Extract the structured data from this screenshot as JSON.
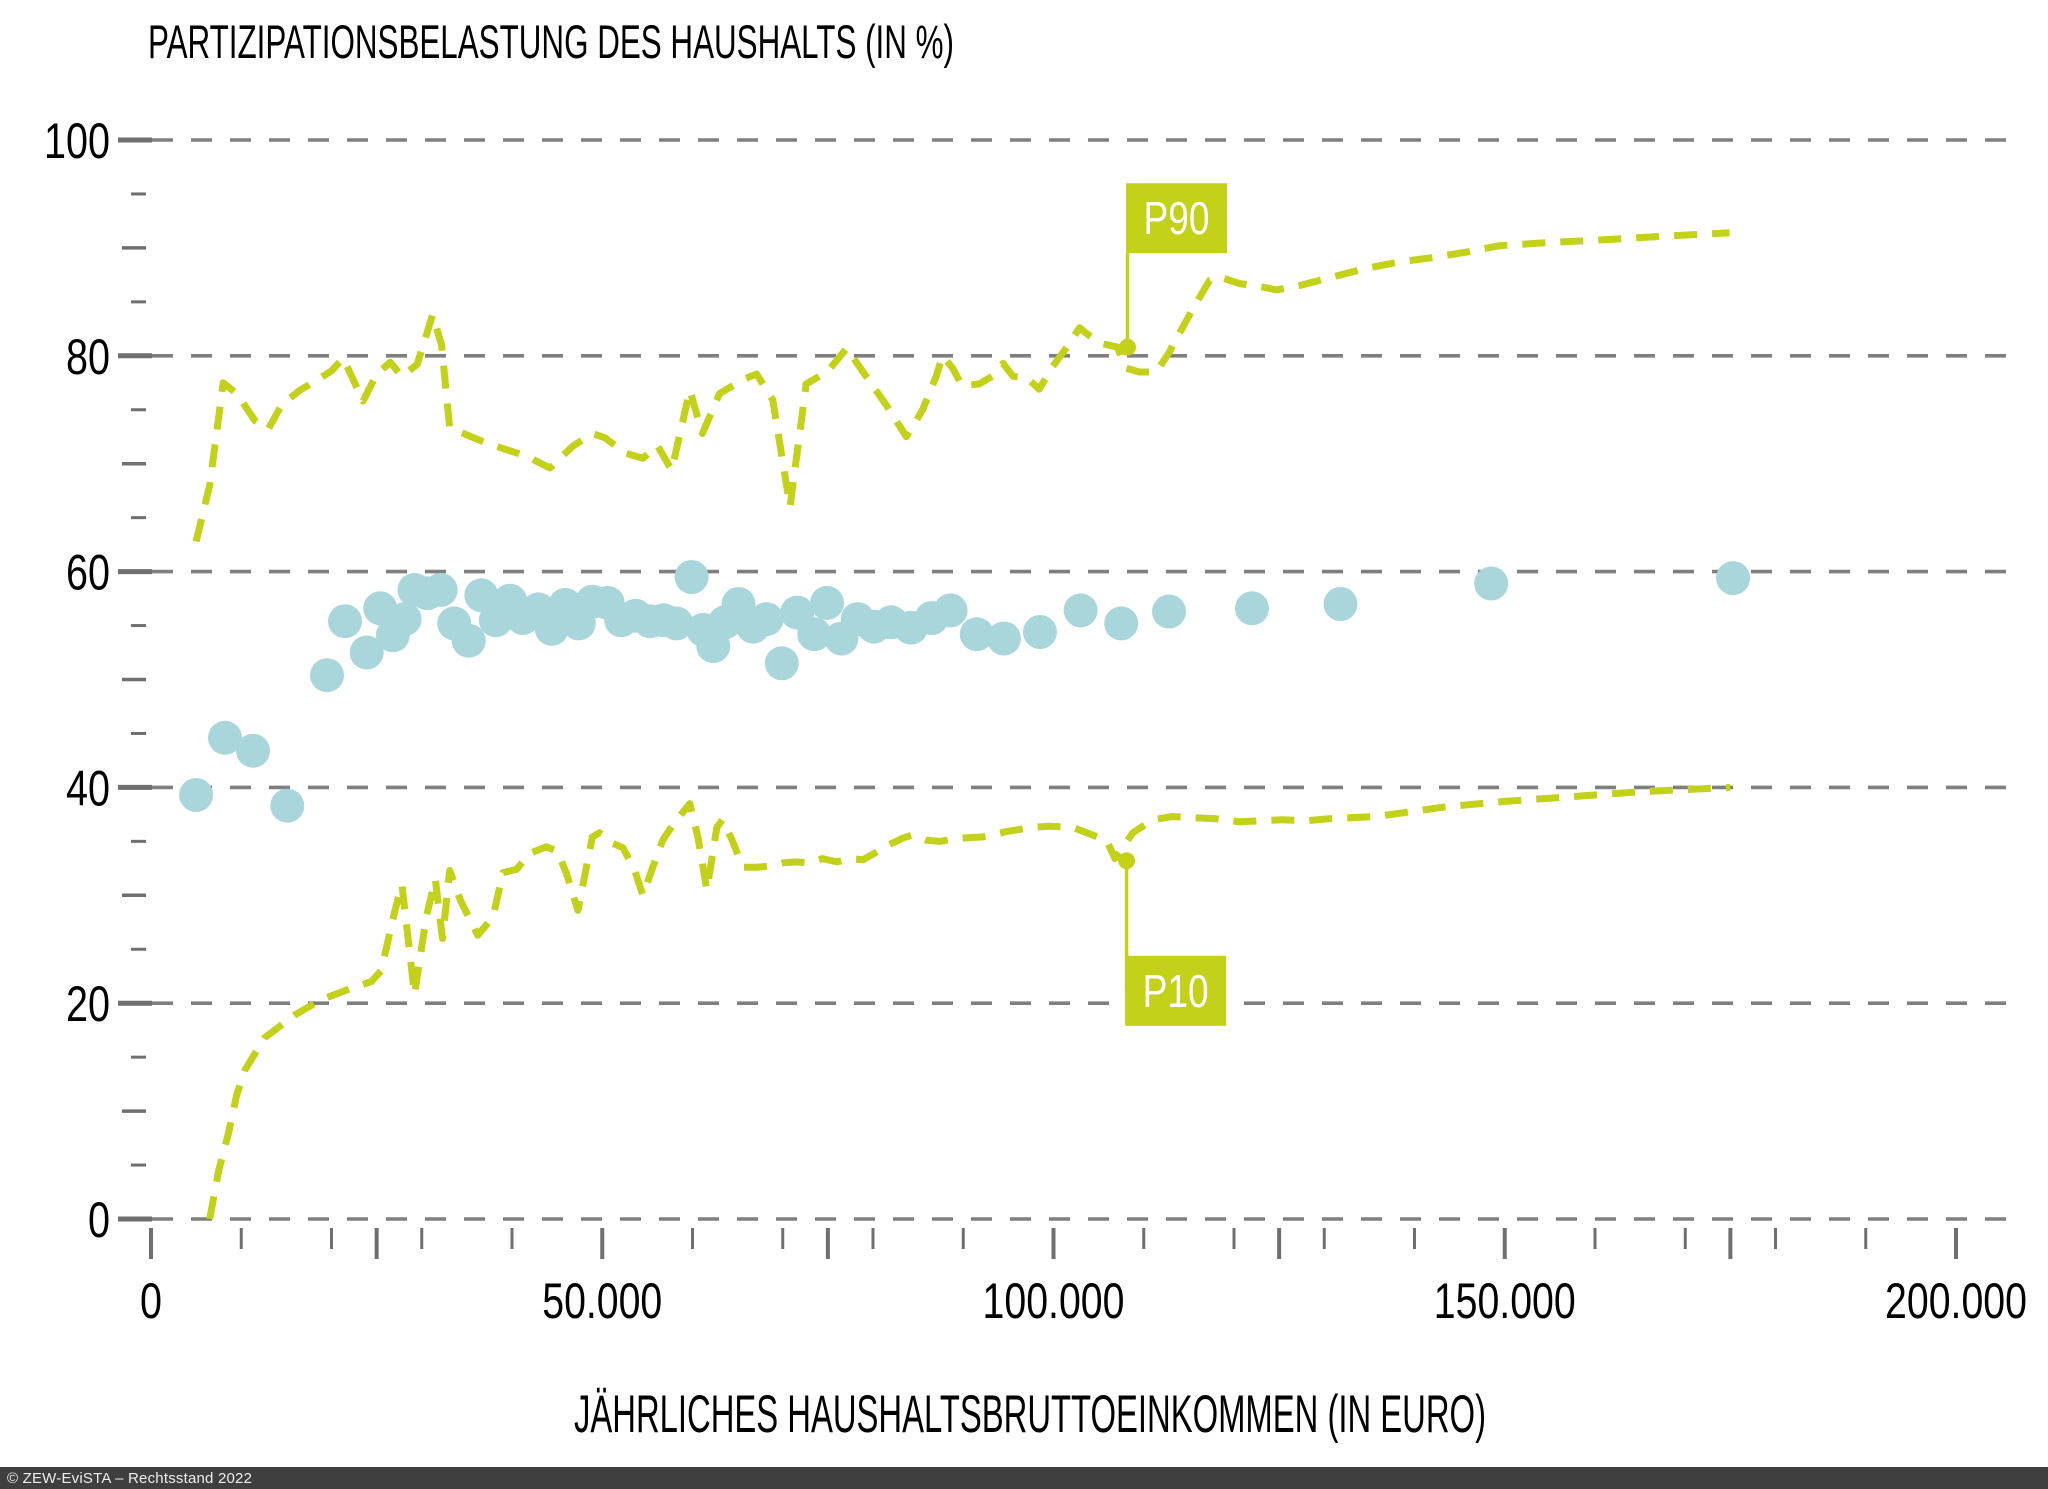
{
  "title": "PARTIZIPATIONSBELASTUNG DES HAUSHALTS (IN %)",
  "x_axis_title": "JÄHRLICHES HAUSHALTSBRUTTOEINKOMMEN (IN EURO)",
  "footer": "© ZEW-EviSTA – Rechtsstand 2022",
  "colors": {
    "accent": "#c3d118",
    "dots": "#a8d6da",
    "grid": "#7f7f7f",
    "tick": "#6f6f6f",
    "text": "#000000",
    "flag_text": "#ffffff",
    "footer_bg": "#3f3f3f",
    "footer_text": "#ededed"
  },
  "chart_data": {
    "type": "scatter",
    "title": "PARTIZIPATIONSBELASTUNG DES HAUSHALTS (IN %)",
    "xlabel": "JÄHRLICHES HAUSHALTSBRUTTOEINKOMMEN (IN EURO)",
    "ylabel": "",
    "xlim": [
      0,
      200000
    ],
    "ylim": [
      0,
      100
    ],
    "grid": "horizontal-dashed",
    "legend": "none",
    "x_tick_labels": [
      {
        "value": 0,
        "label": "0"
      },
      {
        "value": 50000,
        "label": "50.000"
      },
      {
        "value": 100000,
        "label": "100.000"
      },
      {
        "value": 150000,
        "label": "150.000"
      },
      {
        "value": 200000,
        "label": "200.000"
      }
    ],
    "x_ticks_major": [
      0,
      25000,
      50000,
      75000,
      100000,
      125000,
      150000,
      175000,
      200000
    ],
    "x_ticks_minor": [
      10000,
      20000,
      30000,
      40000,
      60000,
      70000,
      80000,
      90000,
      110000,
      120000,
      130000,
      140000,
      160000,
      170000,
      180000,
      190000
    ],
    "y_tick_labels": [
      {
        "value": 0,
        "label": "0"
      },
      {
        "value": 20,
        "label": "20"
      },
      {
        "value": 40,
        "label": "40"
      },
      {
        "value": 60,
        "label": "60"
      },
      {
        "value": 80,
        "label": "80"
      },
      {
        "value": 100,
        "label": "100"
      }
    ],
    "y_ticks_medium": [
      10,
      30,
      50,
      70,
      90
    ],
    "y_ticks_minor": [
      5,
      15,
      25,
      35,
      45,
      55,
      65,
      75,
      85,
      95
    ],
    "annotations": [
      {
        "label": "P90",
        "x": 108200,
        "y": 80.8,
        "side": "above"
      },
      {
        "label": "P10",
        "x": 108100,
        "y": 33.2,
        "side": "below"
      }
    ],
    "series": [
      {
        "name": "P90",
        "type": "dashed-line",
        "color": "#c3d118",
        "points": [
          [
            5000,
            62.8
          ],
          [
            6500,
            68.0
          ],
          [
            8000,
            77.5
          ],
          [
            9500,
            76.5
          ],
          [
            11500,
            74.0
          ],
          [
            13000,
            73.2
          ],
          [
            14500,
            75.5
          ],
          [
            16500,
            76.8
          ],
          [
            18500,
            77.8
          ],
          [
            20000,
            78.6
          ],
          [
            21300,
            79.8
          ],
          [
            23500,
            75.8
          ],
          [
            25000,
            78.3
          ],
          [
            26500,
            79.4
          ],
          [
            27800,
            78.1
          ],
          [
            29500,
            79.2
          ],
          [
            31200,
            83.8
          ],
          [
            32200,
            81.0
          ],
          [
            33100,
            73.3
          ],
          [
            34600,
            72.8
          ],
          [
            37200,
            71.9
          ],
          [
            39400,
            71.3
          ],
          [
            41600,
            70.7
          ],
          [
            44200,
            69.6
          ],
          [
            46700,
            71.6
          ],
          [
            48900,
            72.8
          ],
          [
            50300,
            72.4
          ],
          [
            52500,
            71.0
          ],
          [
            54500,
            70.5
          ],
          [
            56100,
            71.7
          ],
          [
            57700,
            69.4
          ],
          [
            59700,
            76.8
          ],
          [
            61100,
            72.8
          ],
          [
            63000,
            76.5
          ],
          [
            65600,
            77.8
          ],
          [
            67100,
            78.3
          ],
          [
            68900,
            75.9
          ],
          [
            70800,
            66.0
          ],
          [
            72600,
            77.4
          ],
          [
            74900,
            78.5
          ],
          [
            77100,
            80.7
          ],
          [
            78900,
            78.5
          ],
          [
            81500,
            75.4
          ],
          [
            83700,
            72.5
          ],
          [
            85500,
            75.0
          ],
          [
            87000,
            78.1
          ],
          [
            87700,
            80.0
          ],
          [
            88800,
            78.9
          ],
          [
            89900,
            77.2
          ],
          [
            91800,
            77.4
          ],
          [
            93200,
            78.1
          ],
          [
            94400,
            79.3
          ],
          [
            95500,
            78.1
          ],
          [
            97000,
            78.0
          ],
          [
            98400,
            76.9
          ],
          [
            99900,
            79.0
          ],
          [
            101400,
            80.7
          ],
          [
            102900,
            82.6
          ],
          [
            103600,
            82.1
          ],
          [
            105100,
            81.2
          ],
          [
            107100,
            80.8
          ],
          [
            107900,
            78.9
          ],
          [
            109500,
            78.5
          ],
          [
            111400,
            78.5
          ],
          [
            112800,
            80.3
          ],
          [
            115400,
            84.3
          ],
          [
            117300,
            87.0
          ],
          [
            118400,
            87.3
          ],
          [
            120600,
            86.7
          ],
          [
            123600,
            86.3
          ],
          [
            124700,
            86.1
          ],
          [
            127200,
            86.5
          ],
          [
            130900,
            87.3
          ],
          [
            134600,
            88.1
          ],
          [
            138300,
            88.7
          ],
          [
            142000,
            89.1
          ],
          [
            145700,
            89.6
          ],
          [
            149400,
            90.2
          ],
          [
            155000,
            90.5
          ],
          [
            162000,
            90.8
          ],
          [
            168000,
            91.1
          ],
          [
            174900,
            91.4
          ]
        ]
      },
      {
        "name": "P10",
        "type": "dashed-line",
        "color": "#c3d118",
        "points": [
          [
            6500,
            0.0
          ],
          [
            7500,
            4.5
          ],
          [
            8600,
            8.0
          ],
          [
            9500,
            11.5
          ],
          [
            10400,
            13.8
          ],
          [
            12600,
            16.8
          ],
          [
            15900,
            18.9
          ],
          [
            18800,
            20.3
          ],
          [
            21600,
            21.2
          ],
          [
            24400,
            22.0
          ],
          [
            25500,
            23.0
          ],
          [
            27000,
            28.5
          ],
          [
            27800,
            31.0
          ],
          [
            29200,
            20.8
          ],
          [
            30500,
            28.0
          ],
          [
            31500,
            31.5
          ],
          [
            32300,
            26.0
          ],
          [
            33100,
            32.3
          ],
          [
            34300,
            29.5
          ],
          [
            36200,
            26.3
          ],
          [
            37900,
            28.0
          ],
          [
            39000,
            32.1
          ],
          [
            40500,
            32.4
          ],
          [
            42000,
            33.9
          ],
          [
            43800,
            34.5
          ],
          [
            45000,
            34.1
          ],
          [
            46000,
            32.1
          ],
          [
            47300,
            28.6
          ],
          [
            48900,
            35.4
          ],
          [
            49700,
            35.8
          ],
          [
            51200,
            34.8
          ],
          [
            52300,
            34.4
          ],
          [
            53600,
            32.3
          ],
          [
            54500,
            30.0
          ],
          [
            55600,
            32.6
          ],
          [
            56700,
            35.1
          ],
          [
            57800,
            36.5
          ],
          [
            59700,
            38.5
          ],
          [
            60600,
            35.4
          ],
          [
            61600,
            30.5
          ],
          [
            62700,
            36.3
          ],
          [
            63300,
            37.0
          ],
          [
            64400,
            35.1
          ],
          [
            65600,
            32.6
          ],
          [
            67100,
            32.6
          ],
          [
            68500,
            32.7
          ],
          [
            70000,
            33.0
          ],
          [
            71500,
            33.1
          ],
          [
            73000,
            33.0
          ],
          [
            74400,
            33.4
          ],
          [
            76000,
            33.1
          ],
          [
            77400,
            33.4
          ],
          [
            78900,
            33.3
          ],
          [
            80400,
            34.0
          ],
          [
            81800,
            34.7
          ],
          [
            83300,
            35.3
          ],
          [
            84400,
            35.6
          ],
          [
            85900,
            35.1
          ],
          [
            87400,
            35.0
          ],
          [
            89600,
            35.3
          ],
          [
            92100,
            35.4
          ],
          [
            94800,
            35.9
          ],
          [
            97700,
            36.3
          ],
          [
            99500,
            36.4
          ],
          [
            102100,
            36.3
          ],
          [
            104300,
            35.6
          ],
          [
            105900,
            35.1
          ],
          [
            106800,
            33.4
          ],
          [
            108800,
            35.8
          ],
          [
            111000,
            37.0
          ],
          [
            113200,
            37.3
          ],
          [
            115400,
            37.2
          ],
          [
            118000,
            37.1
          ],
          [
            120600,
            36.8
          ],
          [
            122800,
            36.9
          ],
          [
            125400,
            37.0
          ],
          [
            128000,
            36.9
          ],
          [
            130600,
            37.1
          ],
          [
            133100,
            37.2
          ],
          [
            135800,
            37.3
          ],
          [
            138300,
            37.6
          ],
          [
            140900,
            37.9
          ],
          [
            143500,
            38.2
          ],
          [
            146000,
            38.4
          ],
          [
            150000,
            38.7
          ],
          [
            155000,
            39.0
          ],
          [
            160000,
            39.3
          ],
          [
            165000,
            39.6
          ],
          [
            170000,
            39.8
          ],
          [
            175000,
            40.0
          ]
        ]
      },
      {
        "name": "scatter",
        "type": "scatter",
        "color": "#a8d6da",
        "points": [
          [
            5000,
            39.3
          ],
          [
            8200,
            44.6
          ],
          [
            11300,
            43.4
          ],
          [
            15100,
            38.3
          ],
          [
            19500,
            50.4
          ],
          [
            21500,
            55.4
          ],
          [
            23900,
            52.5
          ],
          [
            25400,
            56.6
          ],
          [
            26800,
            54.1
          ],
          [
            28100,
            55.6
          ],
          [
            29200,
            58.3
          ],
          [
            30600,
            58.0
          ],
          [
            32100,
            58.3
          ],
          [
            33600,
            55.2
          ],
          [
            35200,
            53.6
          ],
          [
            36600,
            57.8
          ],
          [
            38200,
            55.5
          ],
          [
            39800,
            57.3
          ],
          [
            41200,
            55.7
          ],
          [
            42900,
            56.5
          ],
          [
            44400,
            54.7
          ],
          [
            45900,
            56.9
          ],
          [
            47400,
            55.2
          ],
          [
            48900,
            57.2
          ],
          [
            50600,
            57.1
          ],
          [
            52100,
            55.5
          ],
          [
            53700,
            55.9
          ],
          [
            55300,
            55.4
          ],
          [
            56800,
            55.5
          ],
          [
            58200,
            55.2
          ],
          [
            59900,
            59.5
          ],
          [
            61200,
            54.6
          ],
          [
            62300,
            53.1
          ],
          [
            63600,
            55.3
          ],
          [
            65100,
            57.0
          ],
          [
            66700,
            54.9
          ],
          [
            68200,
            55.6
          ],
          [
            69900,
            51.5
          ],
          [
            71600,
            56.2
          ],
          [
            73500,
            54.2
          ],
          [
            74900,
            57.1
          ],
          [
            76500,
            53.8
          ],
          [
            78300,
            55.6
          ],
          [
            80100,
            54.9
          ],
          [
            82000,
            55.3
          ],
          [
            84200,
            54.8
          ],
          [
            86500,
            55.7
          ],
          [
            88600,
            56.4
          ],
          [
            91500,
            54.2
          ],
          [
            94500,
            53.8
          ],
          [
            98500,
            54.4
          ],
          [
            103000,
            56.4
          ],
          [
            107500,
            55.2
          ],
          [
            112800,
            56.3
          ],
          [
            122000,
            56.6
          ],
          [
            131800,
            57.0
          ],
          [
            148500,
            58.9
          ],
          [
            175300,
            59.4
          ]
        ]
      }
    ]
  }
}
